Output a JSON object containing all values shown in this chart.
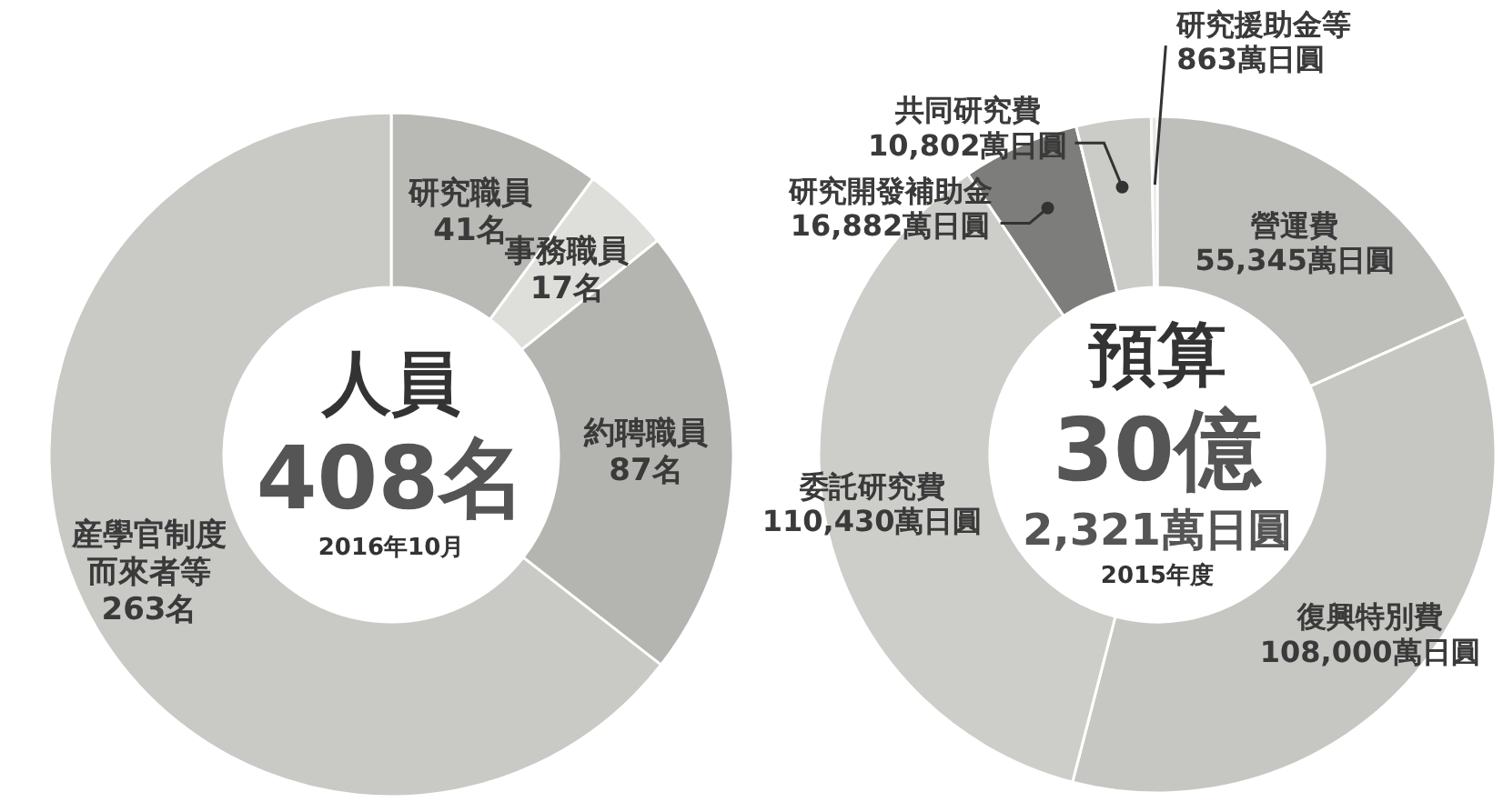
{
  "chart_data": [
    {
      "type": "donut",
      "title": "人員",
      "annotations": [
        "408名",
        "2016年10月"
      ],
      "categories": [
        "研究職員",
        "事務職員",
        "約聘職員",
        "産學官制度而來者等"
      ],
      "values": [
        41,
        17,
        87,
        263
      ],
      "value_labels": [
        "41名",
        "17名",
        "87名",
        "263名"
      ],
      "colors": [
        "#b9b9b6",
        "#dededa",
        "#b4b4b1",
        "#c9c9c6"
      ]
    },
    {
      "type": "donut",
      "title": "預算",
      "annotations": [
        "30億",
        "2,321萬日圓",
        "2015年度"
      ],
      "categories": [
        "營運費",
        "復興特別費",
        "委託研究費",
        "研究開發補助金",
        "共同研究費",
        "研究援助金等"
      ],
      "values": [
        55345,
        108000,
        110430,
        16882,
        10802,
        863
      ],
      "value_labels": [
        "55,345萬日圓",
        "108,000萬日圓",
        "110,430萬日圓",
        "16,882萬日圓",
        "10,802萬日圓",
        "863萬日圓"
      ],
      "colors": [
        "#bebebb",
        "#c6c6c3",
        "#cdcdca",
        "#7d7d7b",
        "#cbcbc8",
        "#e6e6e3"
      ]
    }
  ]
}
